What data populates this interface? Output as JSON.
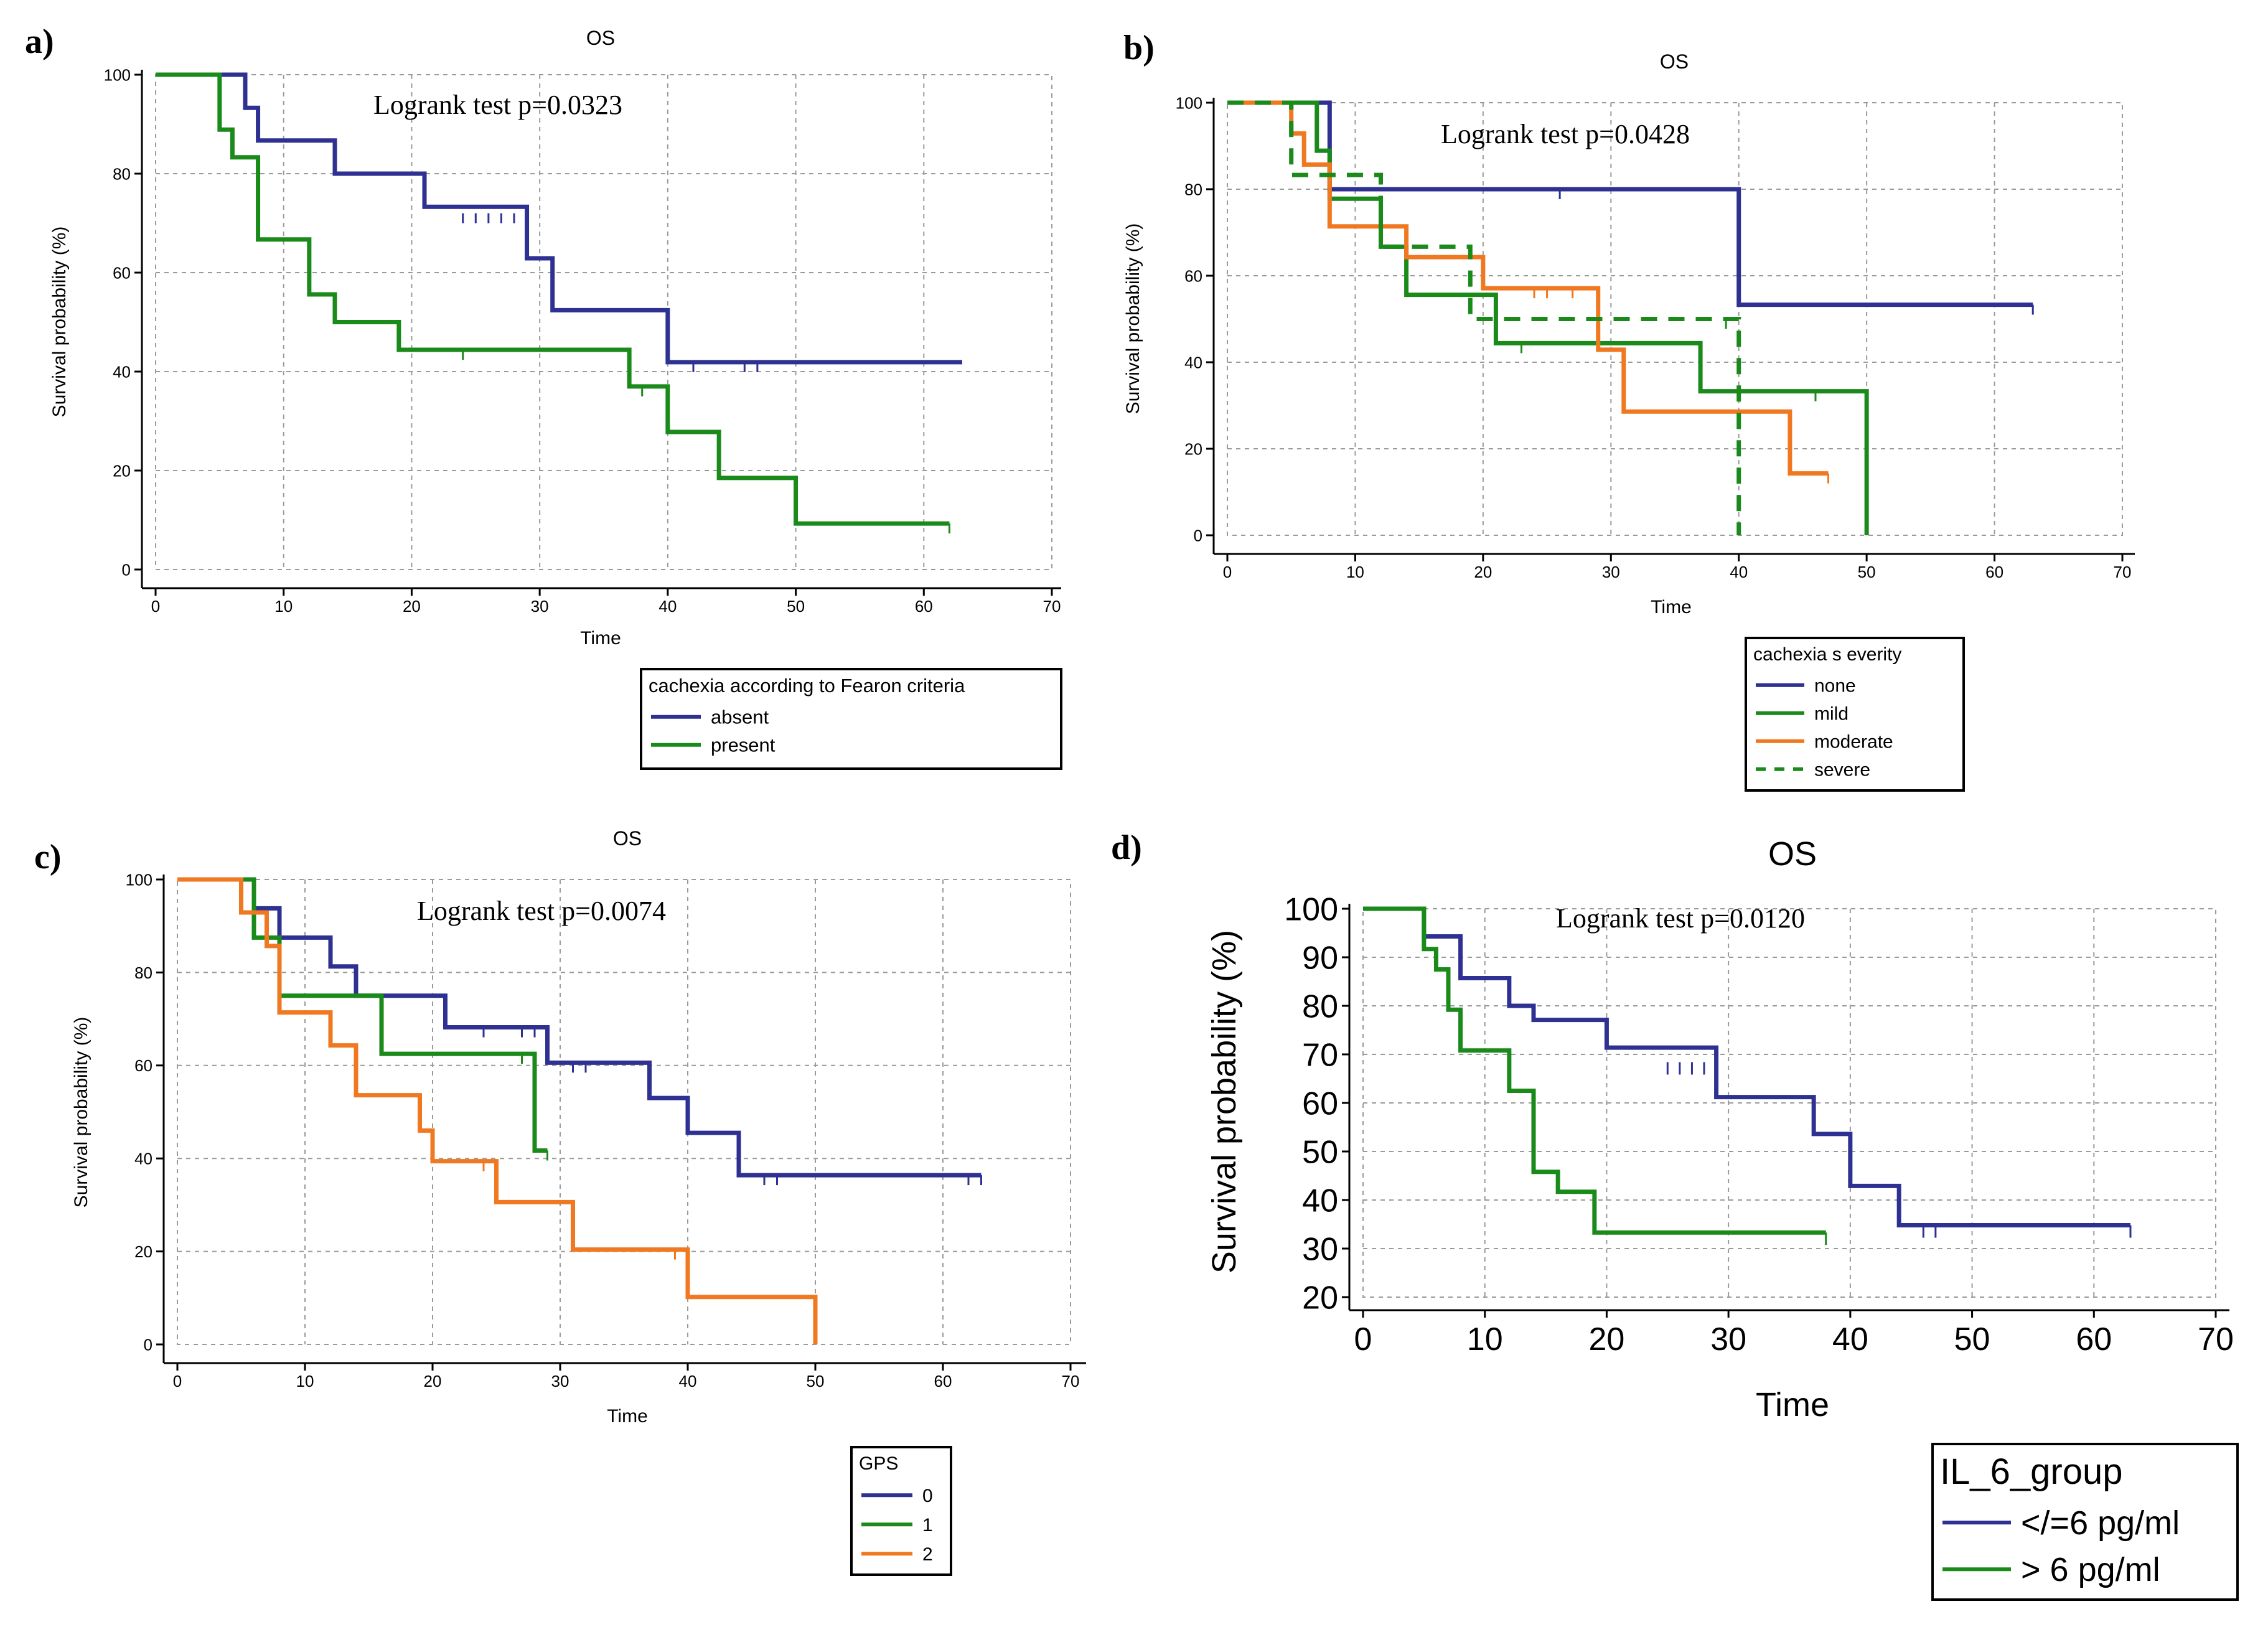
{
  "figure": {
    "panels": [
      "a)",
      "b)",
      "c)",
      "d)"
    ]
  },
  "chart_data": [
    {
      "type": "line",
      "subtype": "kaplan-meier",
      "panel_label": "a)",
      "title": "OS",
      "annotation": "Logrank test p=0.0323",
      "xlabel": "Time",
      "ylabel": "Survival probability (%)",
      "xlim": [
        0,
        70
      ],
      "ylim": [
        0,
        100
      ],
      "xticks": [
        0,
        10,
        20,
        30,
        40,
        50,
        60,
        70
      ],
      "yticks": [
        0,
        20,
        40,
        60,
        80,
        100
      ],
      "grid": true,
      "legend": {
        "title": "cachexia according to Fearon criteria",
        "placement": "below-right",
        "entries": [
          {
            "label": "absent",
            "color": "#2e3192",
            "dash": "solid"
          },
          {
            "label": "present",
            "color": "#1a8a1a",
            "dash": "solid"
          }
        ]
      },
      "series": [
        {
          "name": "absent",
          "color": "#2e3192",
          "dash": "solid",
          "steps": [
            [
              0,
              100
            ],
            [
              7,
              93.3
            ],
            [
              8,
              86.7
            ],
            [
              14,
              80
            ],
            [
              21,
              73.3
            ],
            [
              29,
              62.9
            ],
            [
              31,
              52.4
            ],
            [
              40,
              41.9
            ],
            [
              63,
              41.9
            ]
          ],
          "censored": [
            [
              24,
              72
            ],
            [
              25,
              72
            ],
            [
              26,
              72
            ],
            [
              27,
              72
            ],
            [
              28,
              72
            ],
            [
              42,
              41.9
            ],
            [
              46,
              41.9
            ],
            [
              47,
              41.9
            ]
          ]
        },
        {
          "name": "present",
          "color": "#1a8a1a",
          "dash": "solid",
          "steps": [
            [
              0,
              100
            ],
            [
              5,
              88.9
            ],
            [
              6,
              83.3
            ],
            [
              8,
              66.7
            ],
            [
              12,
              55.6
            ],
            [
              14,
              50
            ],
            [
              19,
              44.4
            ],
            [
              37,
              37
            ],
            [
              40,
              27.8
            ],
            [
              44,
              18.5
            ],
            [
              50,
              9.3
            ],
            [
              62,
              9.3
            ]
          ],
          "censored": [
            [
              24,
              44.4
            ],
            [
              38,
              37
            ],
            [
              62,
              9.3
            ]
          ]
        }
      ]
    },
    {
      "type": "line",
      "subtype": "kaplan-meier",
      "panel_label": "b)",
      "title": "OS",
      "annotation": "Logrank test p=0.0428",
      "xlabel": "Time",
      "ylabel": "Survival probability (%)",
      "xlim": [
        0,
        70
      ],
      "ylim": [
        0,
        100
      ],
      "xticks": [
        0,
        10,
        20,
        30,
        40,
        50,
        60,
        70
      ],
      "yticks": [
        0,
        20,
        40,
        60,
        80,
        100
      ],
      "grid": true,
      "legend": {
        "title": "cachexia s everity",
        "placement": "below-right",
        "entries": [
          {
            "label": "none",
            "color": "#2e3192",
            "dash": "solid"
          },
          {
            "label": "mild",
            "color": "#1a8a1a",
            "dash": "solid"
          },
          {
            "label": "moderate",
            "color": "#f07820",
            "dash": "solid"
          },
          {
            "label": "severe",
            "color": "#1a8a1a",
            "dash": "dashed"
          }
        ]
      },
      "series": [
        {
          "name": "none",
          "color": "#2e3192",
          "dash": "solid",
          "steps": [
            [
              0,
              100
            ],
            [
              8,
              80
            ],
            [
              40,
              53.3
            ],
            [
              63,
              53.3
            ]
          ],
          "censored": [
            [
              26,
              80
            ],
            [
              63,
              53.3
            ]
          ]
        },
        {
          "name": "mild",
          "color": "#1a8a1a",
          "dash": "solid",
          "steps": [
            [
              0,
              100
            ],
            [
              7,
              88.9
            ],
            [
              8,
              77.8
            ],
            [
              12,
              66.7
            ],
            [
              14,
              55.6
            ],
            [
              21,
              44.4
            ],
            [
              37,
              33.3
            ],
            [
              50,
              0
            ]
          ],
          "censored": [
            [
              23,
              44.4
            ],
            [
              46,
              33.3
            ]
          ]
        },
        {
          "name": "moderate",
          "color": "#f07820",
          "dash": "solid",
          "steps": [
            [
              0,
              100
            ],
            [
              5,
              92.9
            ],
            [
              6,
              85.7
            ],
            [
              8,
              71.4
            ],
            [
              14,
              64.3
            ],
            [
              20,
              57.1
            ],
            [
              29,
              42.9
            ],
            [
              31,
              28.6
            ],
            [
              44,
              14.3
            ],
            [
              47,
              14.3
            ]
          ],
          "censored": [
            [
              24,
              57.1
            ],
            [
              25,
              57.1
            ],
            [
              27,
              57.1
            ],
            [
              47,
              14.3
            ]
          ]
        },
        {
          "name": "severe",
          "color": "#1a8a1a",
          "dash": "dashed",
          "steps": [
            [
              0,
              100
            ],
            [
              5,
              83.3
            ],
            [
              12,
              66.7
            ],
            [
              19,
              50
            ],
            [
              40,
              0
            ]
          ],
          "censored": [
            [
              39,
              50
            ]
          ]
        }
      ]
    },
    {
      "type": "line",
      "subtype": "kaplan-meier",
      "panel_label": "c)",
      "title": "OS",
      "annotation": "Logrank test p=0.0074",
      "xlabel": "Time",
      "ylabel": "Survival probability (%)",
      "xlim": [
        0,
        70
      ],
      "ylim": [
        0,
        100
      ],
      "xticks": [
        0,
        10,
        20,
        30,
        40,
        50,
        60,
        70
      ],
      "yticks": [
        0,
        20,
        40,
        60,
        80,
        100
      ],
      "grid": true,
      "legend": {
        "title": "GPS",
        "placement": "below-center",
        "entries": [
          {
            "label": "0",
            "color": "#2e3192",
            "dash": "solid"
          },
          {
            "label": "1",
            "color": "#1a8a1a",
            "dash": "solid"
          },
          {
            "label": "2",
            "color": "#f07820",
            "dash": "solid"
          }
        ]
      },
      "series": [
        {
          "name": "0",
          "color": "#2e3192",
          "dash": "solid",
          "steps": [
            [
              0,
              100
            ],
            [
              6,
              93.8
            ],
            [
              8,
              87.5
            ],
            [
              12,
              81.3
            ],
            [
              14,
              75
            ],
            [
              21,
              68.2
            ],
            [
              29,
              60.6
            ],
            [
              37,
              53
            ],
            [
              40,
              45.5
            ],
            [
              44,
              36.4
            ],
            [
              63,
              36.4
            ]
          ],
          "censored": [
            [
              24,
              68.2
            ],
            [
              27,
              68.2
            ],
            [
              28,
              68.2
            ],
            [
              31,
              60.6
            ],
            [
              32,
              60.6
            ],
            [
              46,
              36.4
            ],
            [
              47,
              36.4
            ],
            [
              62,
              36.4
            ],
            [
              63,
              36.4
            ]
          ]
        },
        {
          "name": "1",
          "color": "#1a8a1a",
          "dash": "solid",
          "steps": [
            [
              0,
              100
            ],
            [
              6,
              87.5
            ],
            [
              8,
              75
            ],
            [
              16,
              62.5
            ],
            [
              28,
              41.7
            ],
            [
              29,
              41.7
            ]
          ],
          "censored": [
            [
              27,
              62.5
            ],
            [
              29,
              41.7
            ]
          ]
        },
        {
          "name": "2",
          "color": "#f07820",
          "dash": "solid",
          "steps": [
            [
              0,
              100
            ],
            [
              5,
              92.9
            ],
            [
              7,
              85.7
            ],
            [
              8,
              71.4
            ],
            [
              12,
              64.3
            ],
            [
              14,
              53.6
            ],
            [
              19,
              46
            ],
            [
              20,
              39.4
            ],
            [
              25,
              30.6
            ],
            [
              31,
              20.4
            ],
            [
              40,
              10.2
            ],
            [
              50,
              0
            ]
          ],
          "censored": [
            [
              24,
              39.4
            ],
            [
              39,
              20.4
            ]
          ]
        }
      ]
    },
    {
      "type": "line",
      "subtype": "kaplan-meier",
      "panel_label": "d)",
      "title": "OS",
      "annotation": "Logrank test p=0.0120",
      "xlabel": "Time",
      "ylabel": "Survival probability (%)",
      "xlim": [
        0,
        70
      ],
      "ylim": [
        20,
        100
      ],
      "xticks": [
        0,
        10,
        20,
        30,
        40,
        50,
        60,
        70
      ],
      "yticks": [
        20,
        30,
        40,
        50,
        60,
        70,
        80,
        90,
        100
      ],
      "grid": true,
      "legend": {
        "title": "IL_6_group",
        "placement": "below-right",
        "entries": [
          {
            "label": "</=6 pg/ml",
            "color": "#2e3192",
            "dash": "solid"
          },
          {
            "label": "> 6 pg/ml",
            "color": "#1a8a1a",
            "dash": "solid"
          }
        ]
      },
      "series": [
        {
          "name": "</=6 pg/ml",
          "color": "#2e3192",
          "dash": "solid",
          "steps": [
            [
              0,
              100
            ],
            [
              5,
              94.3
            ],
            [
              8,
              85.7
            ],
            [
              12,
              80
            ],
            [
              14,
              77.1
            ],
            [
              20,
              71.4
            ],
            [
              29,
              61.2
            ],
            [
              37,
              53.6
            ],
            [
              40,
              42.9
            ],
            [
              44,
              34.8
            ],
            [
              63,
              34.8
            ]
          ],
          "censored": [
            [
              25,
              68.4
            ],
            [
              26,
              68.4
            ],
            [
              27,
              68.4
            ],
            [
              28,
              68.4
            ],
            [
              46,
              34.8
            ],
            [
              47,
              34.8
            ],
            [
              63,
              34.8
            ]
          ]
        },
        {
          "name": "> 6 pg/ml",
          "color": "#1a8a1a",
          "dash": "solid",
          "steps": [
            [
              0,
              100
            ],
            [
              5,
              91.7
            ],
            [
              6,
              87.5
            ],
            [
              7,
              79.2
            ],
            [
              8,
              70.8
            ],
            [
              12,
              62.5
            ],
            [
              14,
              45.8
            ],
            [
              16,
              41.7
            ],
            [
              19,
              33.3
            ],
            [
              38,
              33.3
            ]
          ],
          "censored": [
            [
              38,
              33.3
            ]
          ]
        }
      ]
    }
  ]
}
